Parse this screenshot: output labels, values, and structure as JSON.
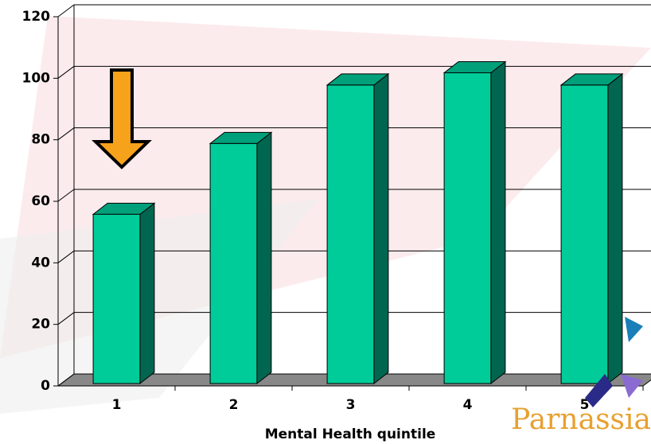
{
  "chart_data": {
    "type": "bar3d",
    "xlabel": "Mental Health quintile",
    "categories": [
      "1",
      "2",
      "3",
      "4",
      "5"
    ],
    "values": [
      55,
      78,
      97,
      101,
      97
    ],
    "color": "#00cc99",
    "ylim": [
      0,
      120
    ],
    "yticks": [
      0,
      20,
      40,
      60,
      80,
      100,
      120
    ],
    "grid": true
  },
  "logo": "Parnassia"
}
